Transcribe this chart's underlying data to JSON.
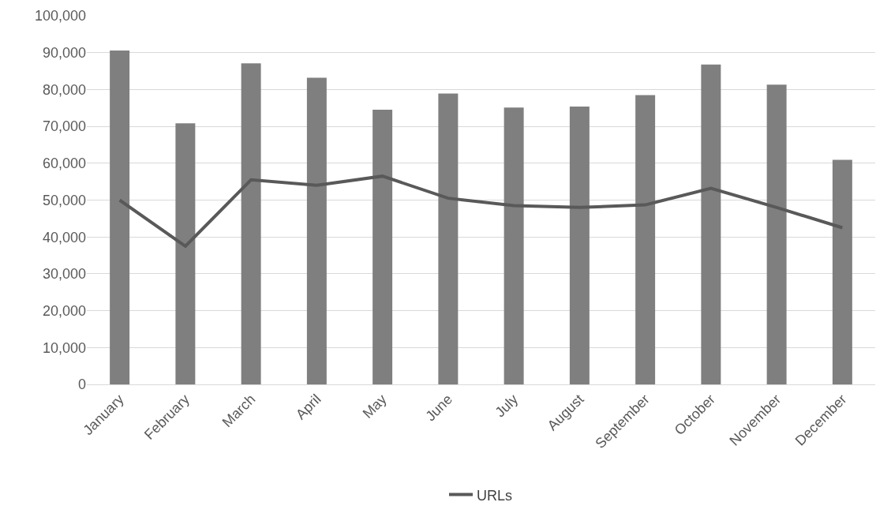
{
  "chart_data": {
    "type": "bar",
    "categories": [
      "January",
      "February",
      "March",
      "April",
      "May",
      "June",
      "July",
      "August",
      "September",
      "October",
      "November",
      "December"
    ],
    "series": [
      {
        "color": "#7f7f7f",
        "values": [
          90600,
          70800,
          87100,
          83200,
          74500,
          78900,
          75100,
          75400,
          78500,
          86800,
          81300,
          60900
        ]
      },
      {
        "type": "line",
        "name": "URLs",
        "color": "#595959",
        "values": [
          50000,
          37500,
          55500,
          54000,
          56500,
          50500,
          48500,
          48000,
          48700,
          53200,
          48000,
          42500
        ]
      }
    ],
    "ylim": [
      0,
      100000
    ],
    "yticks": [
      {
        "value": 0,
        "label": "0"
      },
      {
        "value": 10000,
        "label": "10,000"
      },
      {
        "value": 20000,
        "label": "20,000"
      },
      {
        "value": 30000,
        "label": "30,000"
      },
      {
        "value": 40000,
        "label": "40,000"
      },
      {
        "value": 50000,
        "label": "50,000"
      },
      {
        "value": 60000,
        "label": "60,000"
      },
      {
        "value": 70000,
        "label": "70,000"
      },
      {
        "value": 80000,
        "label": "80,000"
      },
      {
        "value": 90000,
        "label": "90,000"
      },
      {
        "value": 100000,
        "label": "100,000"
      }
    ],
    "grid": "y",
    "legend": "bottom",
    "marker": "none",
    "line_style": "solid"
  }
}
